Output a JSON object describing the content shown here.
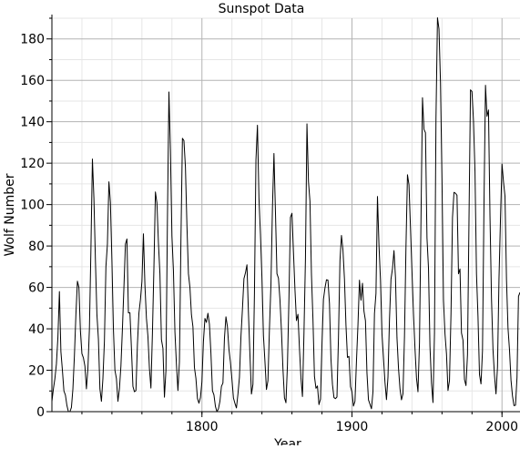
{
  "chart_data": {
    "type": "line",
    "title": "Sunspot Data",
    "xlabel": "Year",
    "ylabel": "Wolf Number",
    "xlim": [
      1700,
      2012
    ],
    "ylim": [
      0,
      190
    ],
    "grid": true,
    "x_ticks": [
      1800,
      1900,
      2000
    ],
    "x_tick_labels": [
      "1800",
      "1900",
      "2000"
    ],
    "y_ticks": [
      0,
      20,
      40,
      60,
      80,
      100,
      120,
      140,
      160,
      180
    ],
    "y_tick_labels": [
      "0",
      "20",
      "40",
      "60",
      "80",
      "100",
      "120",
      "140",
      "160",
      "180"
    ],
    "line_color": "#000000",
    "series": [
      {
        "x": [
          1700,
          1701,
          1702,
          1703,
          1704,
          1705,
          1706,
          1707,
          1708,
          1709,
          1710,
          1711,
          1712,
          1713,
          1714,
          1715,
          1716,
          1717,
          1718,
          1719,
          1720,
          1721,
          1722,
          1723,
          1724,
          1725,
          1726,
          1727,
          1728,
          1729,
          1730,
          1731,
          1732,
          1733,
          1734,
          1735,
          1736,
          1737,
          1738,
          1739,
          1740,
          1741,
          1742,
          1743,
          1744,
          1745,
          1746,
          1747,
          1748,
          1749,
          1750,
          1751,
          1752,
          1753,
          1754,
          1755,
          1756,
          1757,
          1758,
          1759,
          1760,
          1761,
          1762,
          1763,
          1764,
          1765,
          1766,
          1767,
          1768,
          1769,
          1770,
          1771,
          1772,
          1773,
          1774,
          1775,
          1776,
          1777,
          1778,
          1779,
          1780,
          1781,
          1782,
          1783,
          1784,
          1785,
          1786,
          1787,
          1788,
          1789,
          1790,
          1791,
          1792,
          1793,
          1794,
          1795,
          1796,
          1797,
          1798,
          1799,
          1800,
          1801,
          1802,
          1803,
          1804,
          1805,
          1806,
          1807,
          1808,
          1809,
          1810,
          1811,
          1812,
          1813,
          1814,
          1815,
          1816,
          1817,
          1818,
          1819,
          1820,
          1821,
          1822,
          1823,
          1824,
          1825,
          1826,
          1827,
          1828,
          1829,
          1830,
          1831,
          1832,
          1833,
          1834,
          1835,
          1836,
          1837,
          1838,
          1839,
          1840,
          1841,
          1842,
          1843,
          1844,
          1845,
          1846,
          1847,
          1848,
          1849,
          1850,
          1851,
          1852,
          1853,
          1854,
          1855,
          1856,
          1857,
          1858,
          1859,
          1860,
          1861,
          1862,
          1863,
          1864,
          1865,
          1866,
          1867,
          1868,
          1869,
          1870,
          1871,
          1872,
          1873,
          1874,
          1875,
          1876,
          1877,
          1878,
          1879,
          1880,
          1881,
          1882,
          1883,
          1884,
          1885,
          1886,
          1887,
          1888,
          1889,
          1890,
          1891,
          1892,
          1893,
          1894,
          1895,
          1896,
          1897,
          1898,
          1899,
          1900,
          1901,
          1902,
          1903,
          1904,
          1905,
          1906,
          1907,
          1908,
          1909,
          1910,
          1911,
          1912,
          1913,
          1914,
          1915,
          1916,
          1917,
          1918,
          1919,
          1920,
          1921,
          1922,
          1923,
          1924,
          1925,
          1926,
          1927,
          1928,
          1929,
          1930,
          1931,
          1932,
          1933,
          1934,
          1935,
          1936,
          1937,
          1938,
          1939,
          1940,
          1941,
          1942,
          1943,
          1944,
          1945,
          1946,
          1947,
          1948,
          1949,
          1950,
          1951,
          1952,
          1953,
          1954,
          1955,
          1956,
          1957,
          1958,
          1959,
          1960,
          1961,
          1962,
          1963,
          1964,
          1965,
          1966,
          1967,
          1968,
          1969,
          1970,
          1971,
          1972,
          1973,
          1974,
          1975,
          1976,
          1977,
          1978,
          1979,
          1980,
          1981,
          1982,
          1983,
          1984,
          1985,
          1986,
          1987,
          1988,
          1989,
          1990,
          1991,
          1992,
          1993,
          1994,
          1995,
          1996,
          1997,
          1998,
          1999,
          2000,
          2001,
          2002,
          2003,
          2004,
          2005,
          2006,
          2007,
          2008,
          2009,
          2010,
          2011,
          2012
        ],
        "y": [
          5,
          11,
          16,
          23,
          36,
          58,
          29,
          20,
          10,
          8,
          3,
          0,
          0,
          2,
          11,
          27,
          47,
          63,
          60,
          39,
          28,
          26,
          22,
          11,
          21,
          40,
          78,
          122,
          103,
          73,
          47,
          35,
          11,
          5,
          16,
          34,
          70,
          81,
          111,
          101,
          73,
          40,
          20,
          16,
          5,
          11,
          22,
          40,
          60,
          80.9,
          83.4,
          47.7,
          47.8,
          30.7,
          12.2,
          9.6,
          10.2,
          32.4,
          47.6,
          54,
          62.9,
          85.9,
          61.2,
          45.1,
          36.4,
          20.9,
          11.4,
          37.8,
          69.8,
          106.1,
          100.8,
          81.6,
          66.5,
          34.8,
          30.6,
          7,
          19.8,
          92.5,
          154.4,
          125.9,
          84.8,
          68.1,
          38.5,
          22.8,
          10.2,
          24.1,
          82.9,
          132,
          130.9,
          118.1,
          89.9,
          66.6,
          60,
          46.9,
          41,
          21.3,
          16,
          6.4,
          4.1,
          6.8,
          14.5,
          34,
          45,
          43.1,
          47.5,
          42.2,
          28.1,
          10.1,
          8.1,
          2.5,
          0,
          1.4,
          5,
          12.2,
          13.9,
          35.4,
          45.8,
          41,
          30.1,
          23.9,
          15.6,
          6.6,
          4,
          1.8,
          8.5,
          16.6,
          36.3,
          49.6,
          64.2,
          67,
          70.9,
          47.8,
          27.5,
          8.5,
          13.2,
          56.9,
          121.5,
          138.3,
          103.2,
          85.7,
          64.6,
          36.7,
          24.2,
          10.7,
          15,
          40.1,
          61.5,
          98.5,
          124.7,
          96.3,
          66.6,
          64.5,
          54.1,
          39,
          20.6,
          6.7,
          4.3,
          22.7,
          54.8,
          93.8,
          95.8,
          77.2,
          59.1,
          44,
          47,
          30.5,
          16.3,
          7.3,
          37.6,
          74,
          139,
          111.2,
          101.6,
          66.2,
          44.7,
          17,
          11.3,
          12.4,
          3.4,
          6,
          32.3,
          54.3,
          59.7,
          63.7,
          63.5,
          52.2,
          25.4,
          13.1,
          6.8,
          6.3,
          7.1,
          35.6,
          73,
          85.1,
          78,
          64,
          41.8,
          26.2,
          26.7,
          12.1,
          9.5,
          2.7,
          5,
          24.4,
          42,
          63.5,
          53.8,
          62,
          48.5,
          43.9,
          18.6,
          5.7,
          3.6,
          1.4,
          9.6,
          47.4,
          57.1,
          103.9,
          80.6,
          63.6,
          37.6,
          26.1,
          14.2,
          5.8,
          16.7,
          44.3,
          63.9,
          69,
          77.8,
          64.9,
          35.7,
          21.2,
          11.1,
          5.7,
          8.7,
          36.1,
          79.7,
          114.4,
          109.6,
          88.8,
          67.8,
          47.5,
          30.6,
          16.3,
          9.6,
          33.2,
          92.6,
          151.6,
          136.3,
          134.7,
          83.9,
          69.4,
          31.5,
          13.9,
          4.4,
          38,
          141.7,
          190.2,
          184.8,
          159,
          112.3,
          53.9,
          37.6,
          27.9,
          10.2,
          15.1,
          47,
          93.8,
          105.9,
          105.5,
          104.5,
          66.6,
          68.9,
          38,
          34.5,
          15.5,
          12.6,
          27.5,
          92.5,
          155.4,
          154.6,
          140.5,
          115.9,
          66.6,
          45.9,
          17.9,
          13.4,
          29.4,
          100.2,
          157.6,
          142.6,
          145.7,
          94.3,
          54.6,
          29.9,
          17.5,
          8.6,
          21.5,
          64.3,
          93.3,
          119.6,
          111,
          104,
          63.7,
          40.4,
          29.8,
          15.2,
          7.5,
          2.9,
          3.1,
          16.5,
          55.7,
          57.6
        ]
      }
    ]
  }
}
